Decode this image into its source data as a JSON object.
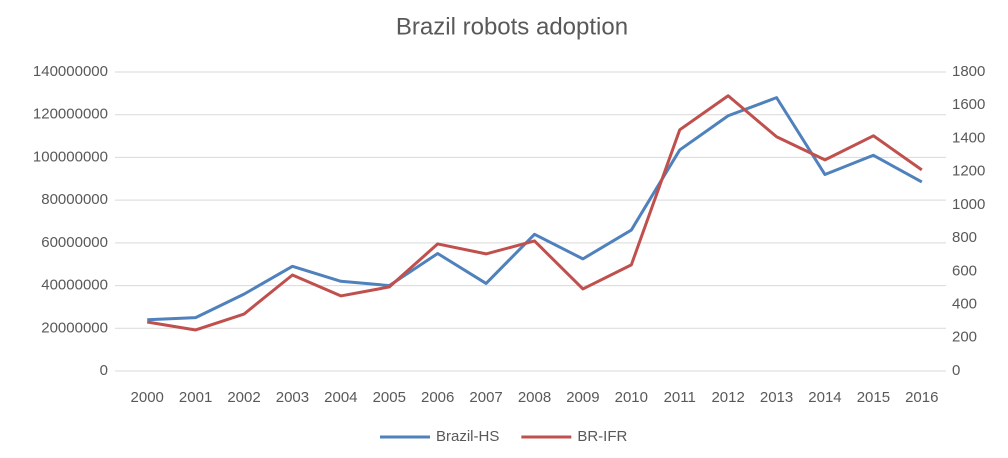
{
  "chart_data": {
    "type": "line",
    "title": "Brazil robots adoption",
    "categories": [
      "2000",
      "2001",
      "2002",
      "2003",
      "2004",
      "2005",
      "2006",
      "2007",
      "2008",
      "2009",
      "2010",
      "2011",
      "2012",
      "2013",
      "2014",
      "2015",
      "2016"
    ],
    "series": [
      {
        "name": "Brazil-HS",
        "color": "#4f81bd",
        "axis": "y",
        "values": [
          24000000,
          25000000,
          36000000,
          49000000,
          42000000,
          40000000,
          55000000,
          41000000,
          64000000,
          52500000,
          66000000,
          103500000,
          119500000,
          128000000,
          92000000,
          101000000,
          88500000
        ]
      },
      {
        "name": "BR-IFR",
        "color": "#c0504d",
        "axis": "y2",
        "values": [
          295,
          247,
          343,
          578,
          452,
          506,
          765,
          705,
          783,
          494,
          639,
          1452,
          1657,
          1410,
          1271,
          1416,
          1211
        ]
      }
    ],
    "ylim": [
      0,
      140000000
    ],
    "yticks": [
      0,
      20000000,
      40000000,
      60000000,
      80000000,
      100000000,
      120000000,
      140000000
    ],
    "y2lim": [
      0,
      1800
    ],
    "y2ticks": [
      0,
      200,
      400,
      600,
      800,
      1000,
      1200,
      1400,
      1600,
      1800
    ],
    "grid": true,
    "legend": "bottom"
  }
}
